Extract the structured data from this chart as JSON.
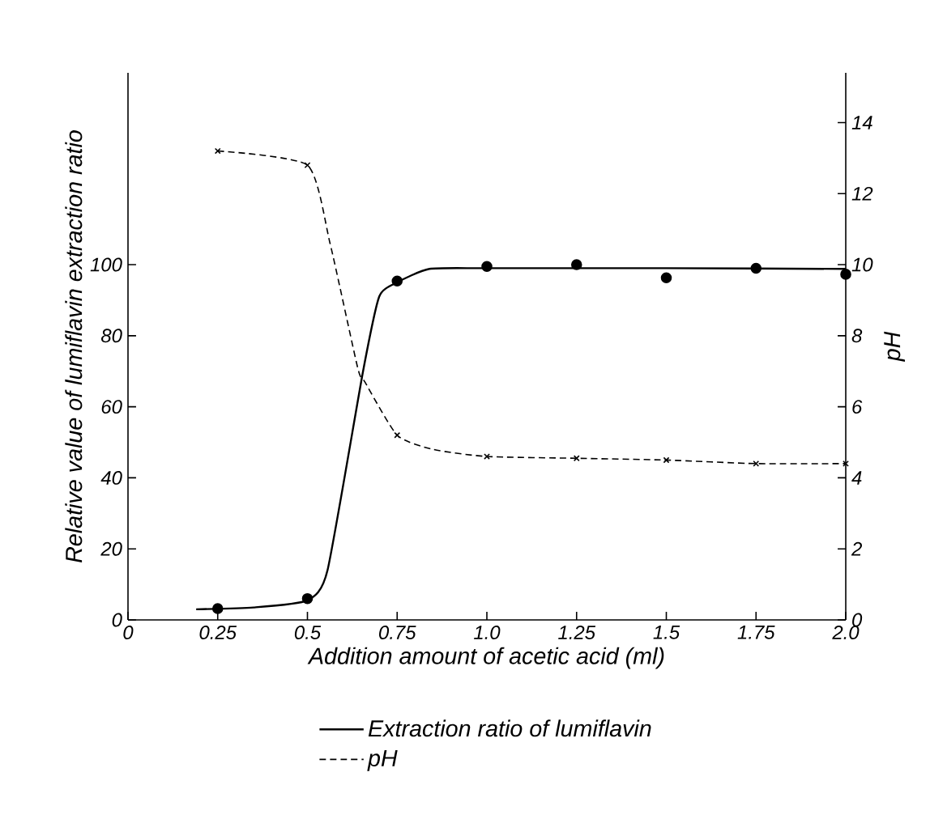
{
  "chart_data": {
    "type": "line",
    "xlabel": "Addition amount of acetic acid (ml)",
    "ylabel": "Relative value of lumiflavin extraction ratio",
    "y2label": "pH",
    "xlim": [
      0,
      2
    ],
    "xticks": [
      0,
      0.25,
      0.5,
      0.75,
      {
        "value": 1,
        "label": "1.0"
      },
      1.25,
      1.5,
      1.75,
      {
        "value": 2,
        "label": "2.0"
      }
    ],
    "ylim": [
      0,
      154
    ],
    "yticks": [
      0,
      20,
      40,
      60,
      80,
      100
    ],
    "y2lim": [
      0,
      15.4
    ],
    "y2ticks": [
      0,
      2,
      4,
      6,
      8,
      10,
      12,
      14
    ],
    "legend": "bottom",
    "series": [
      {
        "name": "Extraction ratio of lumiflavin",
        "color": "#000000",
        "line_style": "solid",
        "marker": "none",
        "x": [
          0.19,
          0.35,
          0.5,
          0.556,
          0.655,
          0.7,
          0.75,
          0.84,
          1.0,
          1.5,
          2.0
        ],
        "values": [
          3,
          3.5,
          5.5,
          14,
          70,
          91,
          95,
          98.8,
          99,
          99,
          98.8
        ]
      },
      {
        "type": "scatter",
        "color": "#000000",
        "marker": "circle",
        "x": [
          0.25,
          0.5,
          0.75,
          1.0,
          1.25,
          1.5,
          1.75,
          2.0
        ],
        "values": [
          3.2,
          6,
          95.4,
          99.5,
          100,
          96.3,
          99,
          97.3
        ]
      },
      {
        "name": "pH",
        "axis": "y2",
        "color": "#000000",
        "line_style": "dashed",
        "marker": "none",
        "x": [
          0.25,
          0.5,
          0.563,
          0.64,
          0.66,
          0.75,
          0.85,
          1.0,
          1.25,
          1.5,
          1.75,
          2.0
        ],
        "values": [
          13.2,
          12.8,
          10.6,
          7.1,
          6.7,
          5.2,
          4.8,
          4.6,
          4.55,
          4.5,
          4.4,
          4.4
        ]
      },
      {
        "type": "scatter",
        "axis": "y2",
        "color": "#000000",
        "marker": "cross",
        "x": [
          0.25,
          0.5,
          0.75,
          1.0,
          1.25,
          1.5,
          1.75,
          2.0
        ],
        "values": [
          13.2,
          12.8,
          5.2,
          4.6,
          4.55,
          4.5,
          4.4,
          4.4
        ]
      }
    ]
  }
}
